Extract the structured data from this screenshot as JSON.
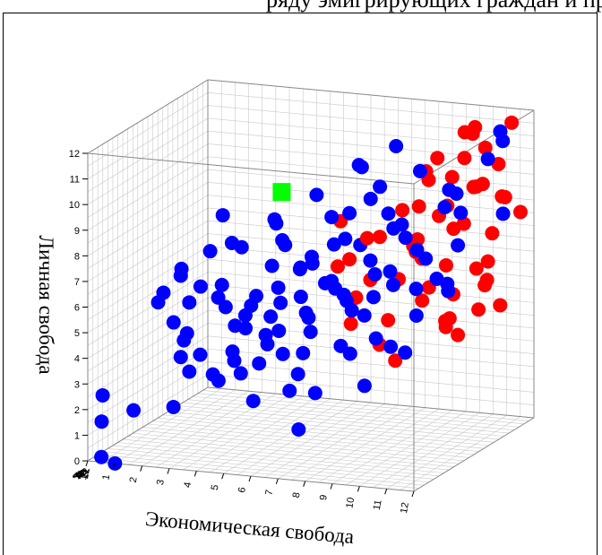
{
  "caption": "ряду эмигрирующих граждан и пр",
  "chart_data": {
    "type": "scatter",
    "projection": "3d",
    "title": "",
    "ylabel": "Личная свобода",
    "xlabel": "Экономическая свобода",
    "zlabel": "",
    "xlim": [
      0,
      12
    ],
    "ylim": [
      0,
      12
    ],
    "zlim": [
      0,
      12
    ],
    "xticks": [
      "0",
      "1",
      "2",
      "3",
      "4",
      "5",
      "6",
      "7",
      "8",
      "9",
      "10",
      "11",
      "12"
    ],
    "yticks": [
      "0",
      "1",
      "2",
      "3",
      "4",
      "5",
      "6",
      "7",
      "8",
      "9",
      "10",
      "11",
      "12"
    ],
    "zticks": [
      "0",
      "1",
      "2",
      "3",
      "4",
      "5",
      "6",
      "7",
      "8",
      "9",
      "10",
      "11",
      "12"
    ],
    "grid": true,
    "series": [
      {
        "color": "#ff0000",
        "marker": "circle",
        "points": [
          [
            8.4,
            9.5,
            11.0
          ],
          [
            9.0,
            10.2,
            10.5
          ],
          [
            9.6,
            11.0,
            11.6
          ],
          [
            10.2,
            11.4,
            11.0
          ],
          [
            10.8,
            10.8,
            10.4
          ],
          [
            11.4,
            11.6,
            11.4
          ],
          [
            9.8,
            9.7,
            9.8
          ],
          [
            10.4,
            9.2,
            10.6
          ],
          [
            11.0,
            9.6,
            9.6
          ],
          [
            11.6,
            9.0,
            10.2
          ],
          [
            8.8,
            8.6,
            9.2
          ],
          [
            9.4,
            8.4,
            10.4
          ],
          [
            10.0,
            7.8,
            9.4
          ],
          [
            10.6,
            8.2,
            8.8
          ],
          [
            11.2,
            7.6,
            10.0
          ],
          [
            11.8,
            8.2,
            11.2
          ],
          [
            8.6,
            7.2,
            9.6
          ],
          [
            9.2,
            6.8,
            8.4
          ],
          [
            9.8,
            6.4,
            9.2
          ],
          [
            10.4,
            6.0,
            10.6
          ],
          [
            11.0,
            5.6,
            9.8
          ],
          [
            11.6,
            6.2,
            8.4
          ],
          [
            8.2,
            5.8,
            8.8
          ],
          [
            8.8,
            5.2,
            10.2
          ],
          [
            9.4,
            4.8,
            11.0
          ],
          [
            10.0,
            4.4,
            9.0
          ],
          [
            10.6,
            4.0,
            8.2
          ],
          [
            11.2,
            4.6,
            10.8
          ],
          [
            7.8,
            7.6,
            8.0
          ],
          [
            8.0,
            6.6,
            10.8
          ],
          [
            7.6,
            6.0,
            7.6
          ],
          [
            9.6,
            10.0,
            8.0
          ],
          [
            10.2,
            8.8,
            7.4
          ],
          [
            11.4,
            10.0,
            7.6
          ],
          [
            11.8,
            10.6,
            9.0
          ],
          [
            12.0,
            9.4,
            8.8
          ],
          [
            6.8,
            8.4,
            6.8
          ],
          [
            7.2,
            7.0,
            6.6
          ],
          [
            6.4,
            6.4,
            7.6
          ],
          [
            7.4,
            4.6,
            6.2
          ],
          [
            8.6,
            4.0,
            5.8
          ],
          [
            9.4,
            3.6,
            5.2
          ],
          [
            10.6,
            4.6,
            7.0
          ],
          [
            11.0,
            11.8,
            8.6
          ],
          [
            10.4,
            10.6,
            9.4
          ],
          [
            9.0,
            9.0,
            7.0
          ],
          [
            12.0,
            7.2,
            7.4
          ],
          [
            11.8,
            5.4,
            7.0
          ],
          [
            10.8,
            5.0,
            6.4
          ],
          [
            9.8,
            5.6,
            6.8
          ],
          [
            8.4,
            4.6,
            7.2
          ],
          [
            7.0,
            5.2,
            7.8
          ],
          [
            8.0,
            8.0,
            6.2
          ],
          [
            9.2,
            7.2,
            7.8
          ]
        ]
      },
      {
        "color": "#0000ff",
        "marker": "circle",
        "points": [
          [
            0.5,
            0.2,
            0.0
          ],
          [
            1.0,
            0.0,
            0.0
          ],
          [
            0.4,
            1.5,
            0.3
          ],
          [
            0.4,
            2.5,
            0.4
          ],
          [
            2.5,
            3.7,
            2.5
          ],
          [
            3.0,
            3.3,
            2.0
          ],
          [
            3.5,
            3.0,
            3.0
          ],
          [
            2.6,
            2.0,
            1.5
          ],
          [
            1.5,
            2.0,
            0.5
          ],
          [
            4.0,
            3.0,
            2.2
          ],
          [
            5.5,
            2.5,
            1.6
          ],
          [
            7.5,
            1.8,
            0.7
          ],
          [
            6.8,
            3.0,
            1.7
          ],
          [
            8.0,
            3.2,
            1.0
          ],
          [
            10.0,
            3.8,
            0.5
          ],
          [
            7.0,
            4.3,
            2.5
          ],
          [
            8.5,
            4.8,
            2.2
          ],
          [
            9.5,
            5.0,
            3.0
          ],
          [
            10.5,
            4.5,
            3.2
          ],
          [
            9.0,
            5.8,
            3.2
          ],
          [
            8.2,
            6.2,
            3.6
          ],
          [
            7.5,
            6.8,
            4.0
          ],
          [
            6.5,
            7.2,
            4.8
          ],
          [
            5.8,
            6.8,
            5.5
          ],
          [
            7.0,
            7.8,
            5.6
          ],
          [
            8.0,
            8.5,
            4.0
          ],
          [
            9.0,
            9.2,
            5.6
          ],
          [
            10.2,
            8.0,
            5.2
          ],
          [
            9.8,
            7.5,
            3.6
          ],
          [
            11.0,
            7.0,
            5.0
          ],
          [
            6.0,
            5.8,
            5.0
          ],
          [
            5.0,
            5.0,
            4.7
          ],
          [
            4.0,
            4.4,
            4.9
          ],
          [
            3.6,
            5.4,
            4.0
          ],
          [
            4.8,
            6.0,
            3.8
          ],
          [
            5.6,
            7.4,
            3.2
          ],
          [
            4.2,
            6.8,
            2.0
          ],
          [
            3.6,
            6.8,
            1.5
          ],
          [
            3.0,
            6.0,
            2.0
          ],
          [
            2.6,
            6.7,
            0.5
          ],
          [
            5.0,
            8.4,
            1.8
          ],
          [
            6.2,
            8.6,
            2.6
          ],
          [
            7.5,
            9.3,
            4.0
          ],
          [
            8.8,
            10.3,
            5.3
          ],
          [
            9.8,
            10.7,
            6.6
          ],
          [
            11.5,
            11.6,
            10.0
          ],
          [
            10.5,
            9.8,
            7.6
          ],
          [
            11.0,
            9.0,
            7.4
          ],
          [
            11.6,
            8.4,
            10.0
          ],
          [
            10.6,
            7.5,
            8.2
          ],
          [
            9.6,
            7.0,
            7.7
          ],
          [
            9.8,
            6.2,
            6.2
          ],
          [
            8.6,
            6.0,
            5.2
          ],
          [
            7.8,
            5.4,
            5.2
          ],
          [
            6.8,
            4.8,
            3.8
          ],
          [
            6.0,
            4.0,
            3.2
          ],
          [
            5.2,
            3.6,
            3.0
          ],
          [
            4.6,
            3.2,
            2.8
          ],
          [
            4.0,
            3.8,
            3.6
          ],
          [
            3.4,
            4.0,
            2.0
          ],
          [
            2.8,
            4.5,
            2.0
          ],
          [
            2.2,
            5.0,
            2.6
          ],
          [
            2.0,
            6.0,
            1.6
          ],
          [
            2.6,
            7.2,
            2.3
          ],
          [
            3.4,
            7.8,
            3.0
          ],
          [
            4.2,
            8.2,
            3.0
          ],
          [
            5.4,
            9.0,
            4.0
          ],
          [
            6.8,
            10.0,
            4.4
          ],
          [
            7.4,
            10.6,
            7.0
          ],
          [
            8.4,
            11.2,
            8.0
          ],
          [
            12.0,
            11.2,
            7.4
          ],
          [
            11.0,
            10.8,
            11.6
          ],
          [
            8.6,
            8.2,
            7.2
          ],
          [
            7.6,
            7.6,
            6.6
          ],
          [
            6.6,
            6.2,
            5.8
          ],
          [
            5.4,
            5.6,
            4.6
          ],
          [
            4.4,
            5.2,
            3.8
          ],
          [
            3.8,
            4.6,
            4.4
          ],
          [
            5.0,
            4.4,
            4.2
          ],
          [
            6.0,
            5.0,
            2.8
          ],
          [
            7.0,
            5.8,
            2.8
          ],
          [
            8.0,
            6.8,
            3.0
          ],
          [
            9.0,
            7.8,
            3.8
          ],
          [
            10.0,
            8.6,
            4.6
          ],
          [
            11.0,
            9.6,
            5.8
          ],
          [
            6.4,
            7.4,
            5.0
          ],
          [
            5.6,
            6.6,
            6.0
          ],
          [
            4.8,
            5.8,
            6.0
          ],
          [
            3.8,
            5.0,
            6.0
          ],
          [
            9.2,
            8.6,
            6.4
          ],
          [
            8.2,
            9.6,
            6.0
          ],
          [
            7.2,
            8.8,
            6.6
          ],
          [
            10.4,
            9.4,
            8.6
          ],
          [
            8.8,
            7.0,
            4.8
          ],
          [
            7.8,
            6.2,
            4.4
          ],
          [
            6.8,
            5.4,
            3.6
          ],
          [
            5.8,
            4.6,
            2.2
          ],
          [
            4.8,
            4.0,
            1.6
          ],
          [
            10.8,
            6.4,
            6.6
          ],
          [
            9.4,
            6.6,
            5.0
          ],
          [
            5.2,
            7.6,
            5.6
          ],
          [
            3.4,
            5.8,
            3.8
          ],
          [
            2.4,
            4.4,
            3.4
          ],
          [
            7.0,
            3.6,
            2.0
          ],
          [
            8.4,
            4.2,
            3.4
          ],
          [
            9.6,
            4.4,
            4.2
          ],
          [
            10.4,
            5.6,
            4.6
          ],
          [
            11.2,
            6.4,
            5.6
          ],
          [
            6.2,
            9.4,
            2.0
          ],
          [
            4.6,
            9.8,
            1.0
          ],
          [
            9.2,
            11.8,
            2.4
          ],
          [
            3.2,
            7.4,
            0.6
          ]
        ]
      },
      {
        "color": "#00ff00",
        "marker": "square",
        "points": [
          [
            5.0,
            9.6,
            5.8
          ]
        ]
      }
    ]
  }
}
